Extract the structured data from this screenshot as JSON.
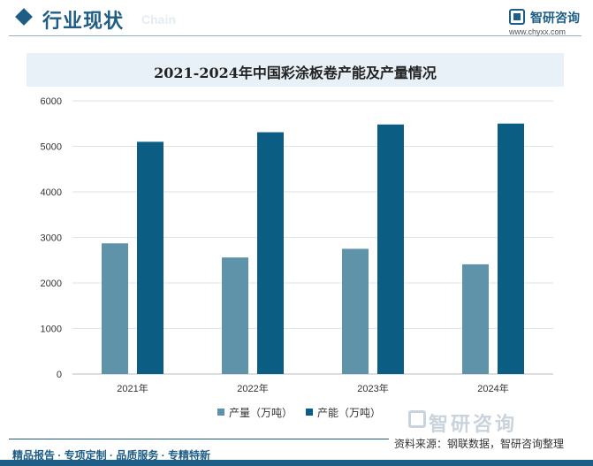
{
  "header": {
    "section_title": "行业现状",
    "section_subtitle": "Chain",
    "brand_name": "智研咨询",
    "brand_url": "www.chyxx.com"
  },
  "chart_data": {
    "type": "bar",
    "title": "2021-2024年中国彩涂板卷产能及产量情况",
    "categories": [
      "2021年",
      "2022年",
      "2023年",
      "2024年"
    ],
    "series": [
      {
        "name": "产量（万吨）",
        "color": "#5f93aa",
        "values": [
          2870,
          2560,
          2750,
          2410
        ]
      },
      {
        "name": "产能（万吨）",
        "color": "#0b5d83",
        "values": [
          5100,
          5310,
          5480,
          5500
        ]
      }
    ],
    "yticks": [
      "0",
      "1000",
      "2000",
      "3000",
      "4000",
      "5000",
      "6000"
    ],
    "ylim": [
      0,
      6000
    ],
    "xlabel": "",
    "ylabel": "",
    "grid": true,
    "legend_position": "bottom"
  },
  "watermark": {
    "brand": "智研咨询"
  },
  "footer": {
    "source": "资料来源：钢联数据，智研咨询整理",
    "slogan": "精品报告 · 专项定制 · 品质服务 · 专精特新"
  }
}
